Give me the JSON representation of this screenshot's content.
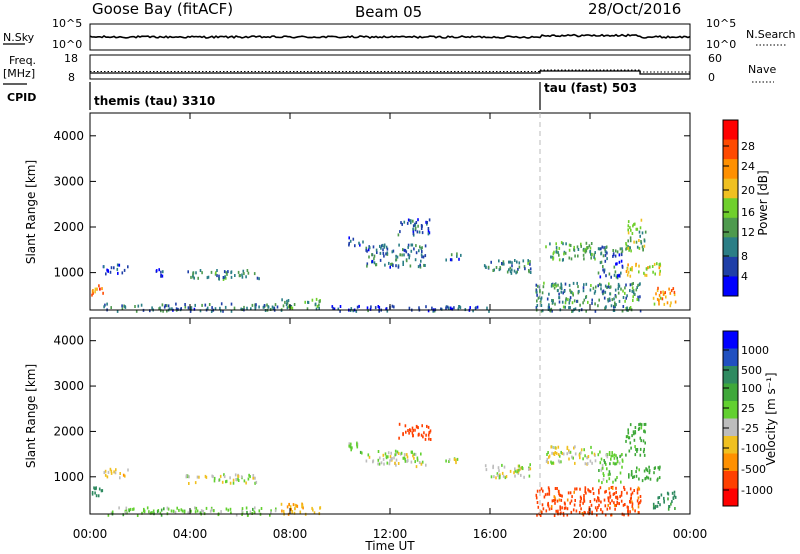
{
  "header": {
    "station": "Goose Bay (fitACF)",
    "beam": "Beam 05",
    "date": "28/Oct/2016"
  },
  "top_panels": {
    "nsky_label": "N.Sky",
    "nsky_ticks": [
      "10^5",
      "10^0"
    ],
    "nsearch_label": "N.Search",
    "nsearch_ticks": [
      "10^5",
      "10^0"
    ],
    "freq_label": "Freq.",
    "freq_unit": "[MHz]",
    "freq_ticks": [
      "18",
      "8"
    ],
    "nave_label": "Nave",
    "nave_ticks": [
      "60",
      "0"
    ],
    "cpid_label": "CPID",
    "cpid_segments": [
      {
        "label": "themis (tau) 3310",
        "start_hour": 0
      },
      {
        "label": "tau (fast) 503",
        "start_hour": 18
      }
    ]
  },
  "x_axis": {
    "label": "Time UT",
    "ticks": [
      "00:00",
      "04:00",
      "08:00",
      "12:00",
      "16:00",
      "20:00",
      "00:00"
    ],
    "range_hours": [
      0,
      24
    ]
  },
  "colors": {
    "power_scale": [
      "#0000ff",
      "#1f3fa8",
      "#2b7e86",
      "#4e9a4e",
      "#6fcf2c",
      "#f0c020",
      "#ff9000",
      "#ff4a00",
      "#ff0000"
    ],
    "velocity_scale": [
      "#0000ff",
      "#2050c0",
      "#2f8a60",
      "#3fa83a",
      "#62d030",
      "#bdbdbd",
      "#f0c020",
      "#ff9000",
      "#ff4000",
      "#ff0000"
    ],
    "mode_change_line": "#bbbbbb"
  },
  "chart_data": [
    {
      "type": "heatmap",
      "name": "power",
      "ylabel": "Slant Range [km]",
      "yticks": [
        "1000",
        "2000",
        "3000",
        "4000"
      ],
      "ylim": [
        180,
        4500
      ],
      "xlim": [
        0,
        24
      ],
      "colorbar_label": "Power [dB]",
      "colorbar_ticks": [
        "4",
        "8",
        "12",
        "16",
        "20",
        "24",
        "28"
      ],
      "colorbar_range": [
        0,
        30
      ],
      "regions": [
        {
          "x": [
            0.0,
            0.5
          ],
          "y": [
            500,
            800
          ],
          "v": 24
        },
        {
          "x": [
            0.5,
            1.5
          ],
          "y": [
            1000,
            1200
          ],
          "v": 6
        },
        {
          "x": [
            2.6,
            2.9
          ],
          "y": [
            950,
            1100
          ],
          "v": 6
        },
        {
          "x": [
            3.8,
            6.8
          ],
          "y": [
            880,
            1080
          ],
          "v": 10
        },
        {
          "x": [
            0.5,
            7.5
          ],
          "y": [
            180,
            350
          ],
          "v": 8
        },
        {
          "x": [
            7.6,
            9.2
          ],
          "y": [
            200,
            450
          ],
          "v": 12
        },
        {
          "x": [
            10.3,
            10.9
          ],
          "y": [
            1600,
            1800
          ],
          "v": 6
        },
        {
          "x": [
            11.0,
            13.4
          ],
          "y": [
            1150,
            1650
          ],
          "v": 8
        },
        {
          "x": [
            12.3,
            13.6
          ],
          "y": [
            1850,
            2200
          ],
          "v": 6
        },
        {
          "x": [
            14.2,
            14.8
          ],
          "y": [
            1300,
            1450
          ],
          "v": 8
        },
        {
          "x": [
            15.7,
            17.6
          ],
          "y": [
            1000,
            1300
          ],
          "v": 10
        },
        {
          "x": [
            17.8,
            22.0
          ],
          "y": [
            180,
            800
          ],
          "v": 10
        },
        {
          "x": [
            18.2,
            20.2
          ],
          "y": [
            1300,
            1700
          ],
          "v": 12
        },
        {
          "x": [
            20.3,
            21.3
          ],
          "y": [
            900,
            1600
          ],
          "v": 8
        },
        {
          "x": [
            21.4,
            22.2
          ],
          "y": [
            1500,
            2200
          ],
          "v": 14
        },
        {
          "x": [
            21.4,
            22.8
          ],
          "y": [
            950,
            1250
          ],
          "v": 18
        },
        {
          "x": [
            22.5,
            23.4
          ],
          "y": [
            300,
            700
          ],
          "v": 22
        },
        {
          "x": [
            9.5,
            16.0
          ],
          "y": [
            180,
            300
          ],
          "v": 6
        }
      ]
    },
    {
      "type": "heatmap",
      "name": "velocity",
      "ylabel": "Slant Range [km]",
      "yticks": [
        "1000",
        "2000",
        "3000",
        "4000"
      ],
      "ylim": [
        180,
        4500
      ],
      "xlim": [
        0,
        24
      ],
      "colorbar_label": "Velocity [m s⁻¹]",
      "colorbar_ticks": [
        "1000",
        "500",
        "100",
        "25",
        "-25",
        "-100",
        "-500",
        "-1000"
      ],
      "regions": [
        {
          "x": [
            0.0,
            0.5
          ],
          "y": [
            500,
            800
          ],
          "v": 300
        },
        {
          "x": [
            0.5,
            1.5
          ],
          "y": [
            1000,
            1200
          ],
          "v": -50
        },
        {
          "x": [
            3.8,
            6.8
          ],
          "y": [
            880,
            1080
          ],
          "v": 0
        },
        {
          "x": [
            0.5,
            7.5
          ],
          "y": [
            180,
            350
          ],
          "v": 60
        },
        {
          "x": [
            7.6,
            9.2
          ],
          "y": [
            200,
            450
          ],
          "v": -80
        },
        {
          "x": [
            10.3,
            10.9
          ],
          "y": [
            1500,
            1800
          ],
          "v": 60
        },
        {
          "x": [
            11.0,
            13.4
          ],
          "y": [
            1250,
            1600
          ],
          "v": 0
        },
        {
          "x": [
            12.3,
            13.6
          ],
          "y": [
            1850,
            2200
          ],
          "v": -400
        },
        {
          "x": [
            14.2,
            14.8
          ],
          "y": [
            1300,
            1450
          ],
          "v": 0
        },
        {
          "x": [
            15.7,
            17.6
          ],
          "y": [
            1000,
            1300
          ],
          "v": 0
        },
        {
          "x": [
            17.8,
            22.0
          ],
          "y": [
            180,
            800
          ],
          "v": -300
        },
        {
          "x": [
            18.2,
            20.2
          ],
          "y": [
            1300,
            1700
          ],
          "v": 0
        },
        {
          "x": [
            20.3,
            21.3
          ],
          "y": [
            900,
            1600
          ],
          "v": 60
        },
        {
          "x": [
            21.4,
            22.2
          ],
          "y": [
            1500,
            2200
          ],
          "v": 150
        },
        {
          "x": [
            21.4,
            22.8
          ],
          "y": [
            950,
            1250
          ],
          "v": 150
        },
        {
          "x": [
            22.5,
            23.4
          ],
          "y": [
            300,
            700
          ],
          "v": 300
        }
      ]
    }
  ]
}
